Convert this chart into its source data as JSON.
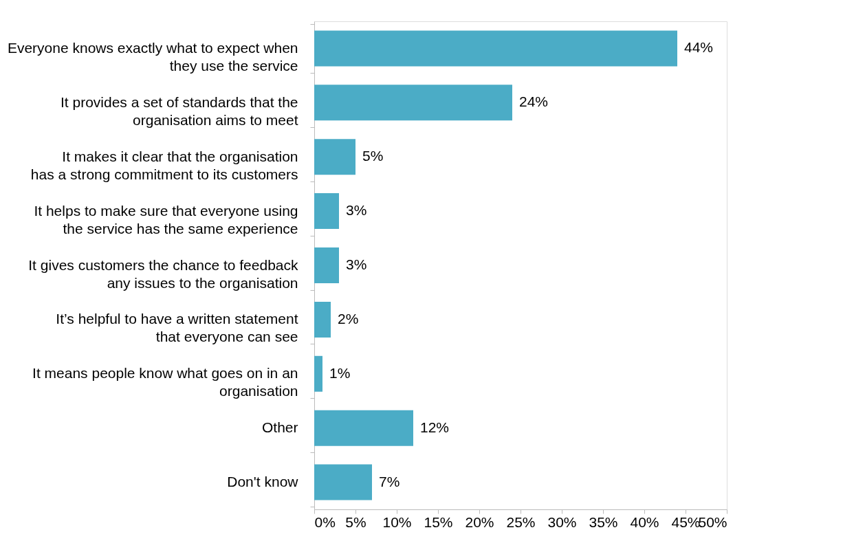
{
  "chart_data": {
    "type": "bar",
    "orientation": "horizontal",
    "categories": [
      "Everyone knows exactly what to expect when they use the service",
      "It provides a set of standards that the organisation aims to meet",
      "It makes it clear that the organisation has a strong commitment to its customers",
      "It helps to make sure that everyone using the service has the same experience",
      "It gives customers the chance to feedback any issues to the organisation",
      "It’s helpful to have a written statement that everyone can see",
      "It means people know what goes on in an organisation",
      "Other",
      "Don't know"
    ],
    "values": [
      44,
      24,
      5,
      3,
      3,
      2,
      1,
      12,
      7
    ],
    "color": "#4bacc6",
    "xlim": [
      0,
      50
    ],
    "xticks": [
      {
        "value": 0,
        "label": "0%"
      },
      {
        "value": 5,
        "label": "5%"
      },
      {
        "value": 10,
        "label": "10%"
      },
      {
        "value": 15,
        "label": "15%"
      },
      {
        "value": 20,
        "label": "20%"
      },
      {
        "value": 25,
        "label": "25%"
      },
      {
        "value": 30,
        "label": "30%"
      },
      {
        "value": 35,
        "label": "35%"
      },
      {
        "value": 40,
        "label": "40%"
      },
      {
        "value": 45,
        "label": "45%"
      },
      {
        "value": 50,
        "label": "50%"
      }
    ],
    "value_labels": [
      "44%",
      "24%",
      "5%",
      "3%",
      "3%",
      "2%",
      "1%",
      "12%",
      "7%"
    ],
    "grid": false
  }
}
